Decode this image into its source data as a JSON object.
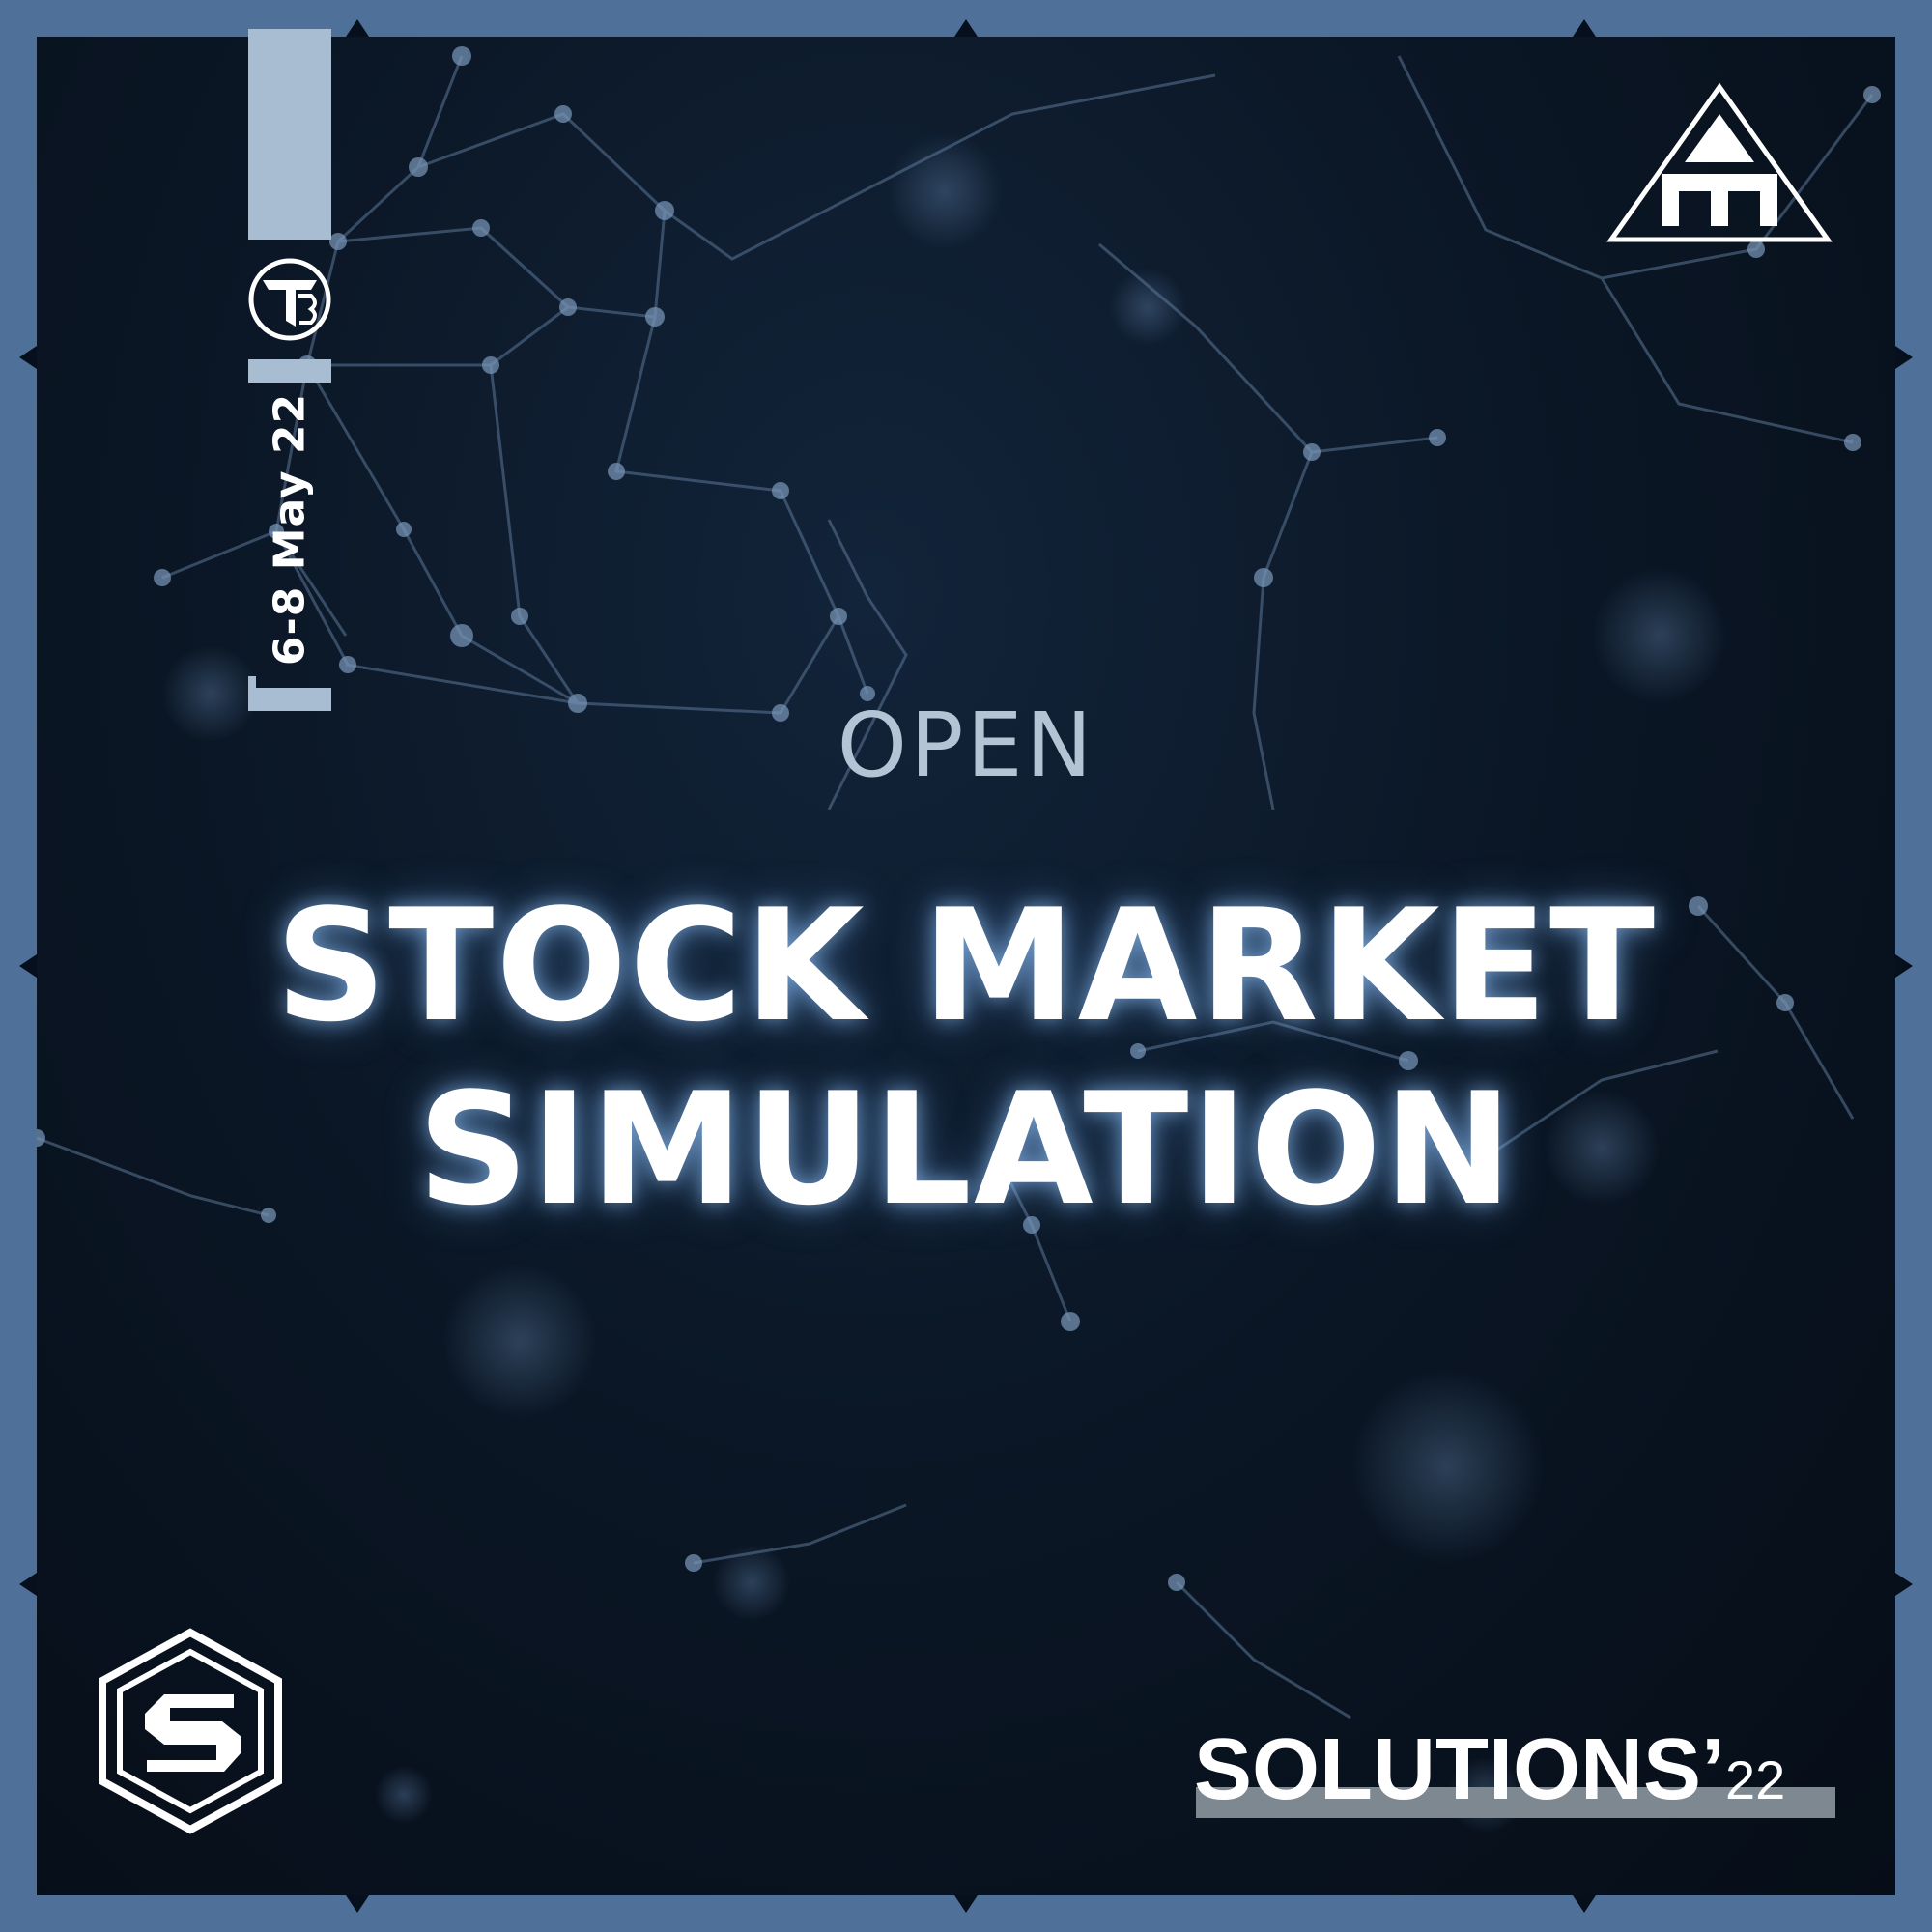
{
  "poster": {
    "date": "6-8 May 22",
    "tag": "OPEN",
    "headline_line1": "STOCK MARKET",
    "headline_line2": "SIMULATION",
    "brand_main": "SOLUTIONS’",
    "brand_year": "22"
  },
  "logos": {
    "badge": {
      "letters": "TB"
    },
    "pyramid": {
      "icon": "pyramid-logo-icon"
    },
    "hex": {
      "letter": "S"
    }
  },
  "colors": {
    "border": "#4e7099",
    "background": "#0b1726",
    "accent_strip": "#a9bdd2",
    "tag_text": "#b3c4d4",
    "headline_text": "#ffffff",
    "brand_bar": "#7e8891"
  }
}
